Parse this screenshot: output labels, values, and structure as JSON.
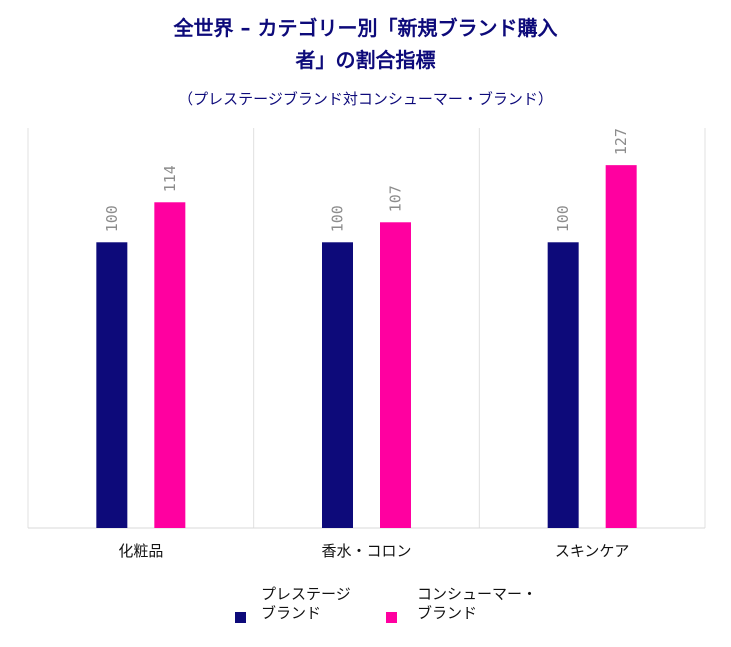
{
  "chart_data": {
    "type": "bar",
    "title_line1": "全世界 – カテゴリー別「新規ブランド購入",
    "title_line2": "者」の割合指標",
    "subtitle": "（プレステージブランド対コンシューマー・ブランド）",
    "categories": [
      "化粧品",
      "香水・コロン",
      "スキンケア"
    ],
    "series": [
      {
        "name_line1": "プレステージ",
        "name_line2": "ブランド",
        "color": "#0d0a7a",
        "values": [
          100,
          100,
          100
        ]
      },
      {
        "name_line1": "コンシューマー・",
        "name_line2": "ブランド",
        "color": "#ff00a0",
        "values": [
          114,
          107,
          127
        ]
      }
    ],
    "ylim": [
      0,
      140
    ],
    "grid": "vertical category separators",
    "legend": "bottom"
  }
}
